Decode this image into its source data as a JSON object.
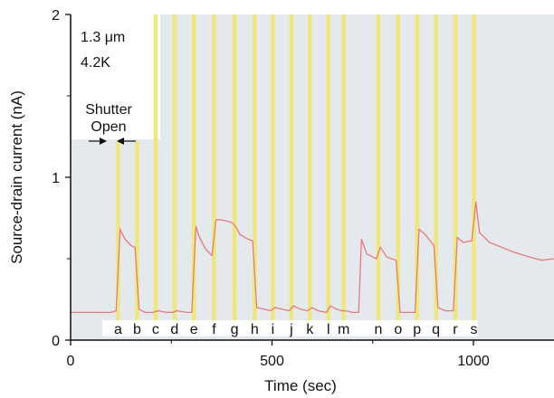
{
  "chart_data": {
    "type": "line",
    "xlabel": "Time (sec)",
    "ylabel": "Source-drain current (nA)",
    "xlim": [
      0,
      1200
    ],
    "ylim": [
      0,
      2
    ],
    "x_ticks": [
      {
        "value": 0,
        "label": "0"
      },
      {
        "value": 500,
        "label": "500"
      },
      {
        "value": 1000,
        "label": "1000"
      }
    ],
    "y_ticks": [
      {
        "value": 0,
        "label": "0"
      },
      {
        "value": 1,
        "label": "1"
      },
      {
        "value": 2,
        "label": "2"
      }
    ],
    "annotations": {
      "size": "1.3 μm",
      "temperature": "4.2K",
      "shutter_line1": "Shutter",
      "shutter_line2": "Open"
    },
    "colors": {
      "plot_background": "#e4e9ee",
      "shutter_band": "#f0e86a",
      "trace": "#e87a7a",
      "axis": "#111111"
    },
    "shutter_pulses": [
      {
        "label": "a",
        "start": 113,
        "end": 123
      },
      {
        "label": "b",
        "start": 160,
        "end": 170
      },
      {
        "label": "c",
        "start": 206,
        "end": 216
      },
      {
        "label": "d",
        "start": 253,
        "end": 263
      },
      {
        "label": "e",
        "start": 301,
        "end": 311
      },
      {
        "label": "f",
        "start": 351,
        "end": 361
      },
      {
        "label": "g",
        "start": 402,
        "end": 412
      },
      {
        "label": "h",
        "start": 452,
        "end": 462
      },
      {
        "label": "i",
        "start": 497,
        "end": 507
      },
      {
        "label": "j",
        "start": 543,
        "end": 553
      },
      {
        "label": "k",
        "start": 589,
        "end": 599
      },
      {
        "label": "l",
        "start": 635,
        "end": 645
      },
      {
        "label": "m",
        "start": 673,
        "end": 683
      },
      {
        "label": "n",
        "start": 759,
        "end": 769
      },
      {
        "label": "o",
        "start": 808,
        "end": 818
      },
      {
        "label": "p",
        "start": 855,
        "end": 865
      },
      {
        "label": "q",
        "start": 902,
        "end": 912
      },
      {
        "label": "r",
        "start": 950,
        "end": 960
      },
      {
        "label": "s",
        "start": 996,
        "end": 1006
      }
    ],
    "series": [
      {
        "color": "#e87a7a",
        "points": [
          [
            0,
            0.17
          ],
          [
            50,
            0.17
          ],
          [
            100,
            0.17
          ],
          [
            113,
            0.18
          ],
          [
            123,
            0.68
          ],
          [
            135,
            0.62
          ],
          [
            150,
            0.58
          ],
          [
            160,
            0.57
          ],
          [
            170,
            0.19
          ],
          [
            185,
            0.17
          ],
          [
            206,
            0.17
          ],
          [
            216,
            0.18
          ],
          [
            240,
            0.17
          ],
          [
            253,
            0.17
          ],
          [
            263,
            0.18
          ],
          [
            290,
            0.17
          ],
          [
            301,
            0.17
          ],
          [
            311,
            0.7
          ],
          [
            320,
            0.63
          ],
          [
            335,
            0.56
          ],
          [
            351,
            0.52
          ],
          [
            361,
            0.74
          ],
          [
            370,
            0.74
          ],
          [
            390,
            0.73
          ],
          [
            402,
            0.72
          ],
          [
            412,
            0.69
          ],
          [
            420,
            0.65
          ],
          [
            440,
            0.62
          ],
          [
            452,
            0.61
          ],
          [
            462,
            0.2
          ],
          [
            480,
            0.19
          ],
          [
            497,
            0.18
          ],
          [
            507,
            0.2
          ],
          [
            525,
            0.19
          ],
          [
            543,
            0.18
          ],
          [
            553,
            0.21
          ],
          [
            570,
            0.19
          ],
          [
            589,
            0.18
          ],
          [
            599,
            0.2
          ],
          [
            615,
            0.18
          ],
          [
            635,
            0.17
          ],
          [
            645,
            0.21
          ],
          [
            660,
            0.19
          ],
          [
            673,
            0.18
          ],
          [
            683,
            0.18
          ],
          [
            700,
            0.17
          ],
          [
            715,
            0.17
          ],
          [
            722,
            0.62
          ],
          [
            735,
            0.53
          ],
          [
            750,
            0.51
          ],
          [
            759,
            0.5
          ],
          [
            769,
            0.57
          ],
          [
            785,
            0.51
          ],
          [
            808,
            0.49
          ],
          [
            818,
            0.17
          ],
          [
            835,
            0.17
          ],
          [
            855,
            0.17
          ],
          [
            865,
            0.68
          ],
          [
            880,
            0.65
          ],
          [
            902,
            0.58
          ],
          [
            912,
            0.2
          ],
          [
            930,
            0.18
          ],
          [
            950,
            0.18
          ],
          [
            960,
            0.63
          ],
          [
            975,
            0.6
          ],
          [
            996,
            0.61
          ],
          [
            1006,
            0.85
          ],
          [
            1015,
            0.66
          ],
          [
            1040,
            0.6
          ],
          [
            1070,
            0.57
          ],
          [
            1100,
            0.54
          ],
          [
            1140,
            0.51
          ],
          [
            1170,
            0.49
          ],
          [
            1200,
            0.5
          ]
        ]
      }
    ],
    "grid": false
  }
}
